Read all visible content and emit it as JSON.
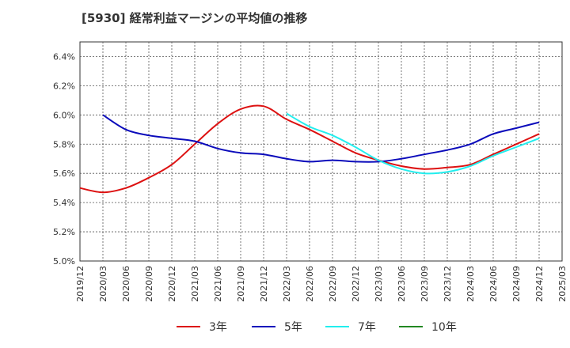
{
  "title": "[5930]  経常利益マージンの平均値の推移",
  "colors": {
    "s3": "#dd1111",
    "s5": "#0b0bbb",
    "s7": "#22eeee",
    "s10": "#228822"
  },
  "chart_data": {
    "type": "line",
    "title": "[5930]  経常利益マージンの平均値の推移",
    "xlabel": "",
    "ylabel": "",
    "ylim": [
      5.0,
      6.5
    ],
    "x_ticks": [
      "2019/12",
      "2020/03",
      "2020/06",
      "2020/09",
      "2020/12",
      "2021/03",
      "2021/06",
      "2021/09",
      "2021/12",
      "2022/03",
      "2022/06",
      "2022/09",
      "2022/12",
      "2023/03",
      "2023/06",
      "2023/09",
      "2023/12",
      "2024/03",
      "2024/06",
      "2024/09",
      "2024/12",
      "2025/03"
    ],
    "y_ticks": [
      "5.0%",
      "5.2%",
      "5.4%",
      "5.6%",
      "5.8%",
      "6.0%",
      "6.2%",
      "6.4%"
    ],
    "grid": true,
    "legend": "bottom",
    "series": [
      {
        "name": "3年",
        "color": "#dd1111",
        "x": [
          "2019/12",
          "2020/03",
          "2020/06",
          "2020/09",
          "2020/12",
          "2021/03",
          "2021/06",
          "2021/09",
          "2021/12",
          "2022/03",
          "2022/06",
          "2022/09",
          "2022/12",
          "2023/03",
          "2023/06",
          "2023/09",
          "2023/12",
          "2024/03",
          "2024/06",
          "2024/09",
          "2024/12"
        ],
        "values": [
          5.5,
          5.47,
          5.5,
          5.57,
          5.66,
          5.8,
          5.94,
          6.04,
          6.06,
          5.97,
          5.9,
          5.82,
          5.74,
          5.69,
          5.65,
          5.63,
          5.64,
          5.66,
          5.73,
          5.8,
          5.87
        ]
      },
      {
        "name": "5年",
        "color": "#0b0bbb",
        "x": [
          "2020/03",
          "2020/06",
          "2020/09",
          "2020/12",
          "2021/03",
          "2021/06",
          "2021/09",
          "2021/12",
          "2022/03",
          "2022/06",
          "2022/09",
          "2022/12",
          "2023/03",
          "2023/06",
          "2023/09",
          "2023/12",
          "2024/03",
          "2024/06",
          "2024/09",
          "2024/12"
        ],
        "values": [
          6.0,
          5.9,
          5.86,
          5.84,
          5.82,
          5.77,
          5.74,
          5.73,
          5.7,
          5.68,
          5.69,
          5.68,
          5.68,
          5.7,
          5.73,
          5.76,
          5.8,
          5.87,
          5.91,
          5.95
        ]
      },
      {
        "name": "7年",
        "color": "#22eeee",
        "x": [
          "2022/03",
          "2022/06",
          "2022/09",
          "2022/12",
          "2023/03",
          "2023/06",
          "2023/09",
          "2023/12",
          "2024/03",
          "2024/06",
          "2024/09",
          "2024/12"
        ],
        "values": [
          6.01,
          5.92,
          5.86,
          5.78,
          5.69,
          5.63,
          5.6,
          5.61,
          5.65,
          5.72,
          5.78,
          5.84
        ]
      },
      {
        "name": "10年",
        "color": "#228822",
        "x": [],
        "values": []
      }
    ]
  }
}
